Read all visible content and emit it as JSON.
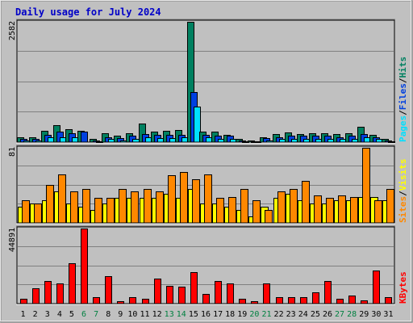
{
  "chart_data": {
    "type": "bar",
    "title": "Daily usage for July 2024",
    "days": [
      "1",
      "2",
      "3",
      "4",
      "5",
      "6",
      "7",
      "8",
      "9",
      "10",
      "11",
      "12",
      "13",
      "14",
      "15",
      "16",
      "17",
      "18",
      "19",
      "20",
      "21",
      "22",
      "23",
      "24",
      "25",
      "26",
      "27",
      "28",
      "29",
      "30",
      "31"
    ],
    "weekend_days": [
      "6",
      "7",
      "13",
      "14",
      "20",
      "21",
      "27",
      "28"
    ],
    "colors": {
      "hits": "#008060",
      "files": "#0040e0",
      "pages": "#00e0ff",
      "visits": "#ffff00",
      "sites": "#ff8800",
      "kbytes": "#ff0000",
      "weekday": "#000000",
      "weekend": "#008040",
      "title": "#0000c8",
      "grid": "#808080",
      "background": "#c0c0c0"
    },
    "panels": [
      {
        "id": "hits-panel",
        "ymax": 2582,
        "ymax_label": "2582",
        "legend": [
          {
            "label": "Pages",
            "color": "#00e0ff"
          },
          {
            "label": "Files",
            "color": "#0040e0"
          },
          {
            "label": "Hits",
            "color": "#008060"
          }
        ],
        "separator": "/",
        "series": [
          {
            "name": "Hits",
            "color": "#008060",
            "values": [
              108,
              108,
              238,
              367,
              270,
              238,
              65,
              194,
              130,
              194,
              399,
              226,
              238,
              258,
              2582,
              226,
              226,
              160,
              65,
              32,
              108,
              174,
              207,
              174,
              194,
              194,
              174,
              194,
              323,
              160,
              65
            ]
          },
          {
            "name": "Files",
            "color": "#0040e0",
            "values": [
              75,
              75,
              160,
              226,
              194,
              226,
              43,
              108,
              86,
              130,
              174,
              160,
              160,
              160,
              1070,
              160,
              140,
              130,
              43,
              20,
              86,
              108,
              140,
              140,
              140,
              130,
              108,
              140,
              174,
              108,
              43
            ]
          },
          {
            "name": "Pages",
            "color": "#00e0ff",
            "values": [
              43,
              43,
              108,
              108,
              97,
              0,
              20,
              65,
              43,
              65,
              97,
              86,
              86,
              97,
              762,
              97,
              75,
              75,
              20,
              10,
              43,
              65,
              75,
              65,
              65,
              65,
              65,
              65,
              108,
              65,
              20
            ]
          }
        ]
      },
      {
        "id": "visits-panel",
        "ymax": 81,
        "ymax_label": "81",
        "legend": [
          {
            "label": "Sites",
            "color": "#ff8800"
          },
          {
            "label": "Visits",
            "color": "#ffff00"
          }
        ],
        "separator": "/",
        "series": [
          {
            "name": "Visits",
            "color": "#ffff00",
            "values": [
              17,
              21,
              24,
              34,
              21,
              17,
              14,
              21,
              27,
              27,
              27,
              27,
              31,
              27,
              37,
              21,
              21,
              17,
              14,
              7,
              17,
              27,
              31,
              24,
              21,
              21,
              24,
              24,
              28,
              28,
              24
            ]
          },
          {
            "name": "Sites",
            "color": "#ff8800",
            "values": [
              24,
              21,
              41,
              52,
              34,
              37,
              27,
              27,
              37,
              34,
              37,
              34,
              51,
              55,
              47,
              52,
              27,
              28,
              37,
              24,
              14,
              34,
              37,
              45,
              30,
              27,
              30,
              28,
              81,
              24,
              37
            ]
          }
        ]
      },
      {
        "id": "kbytes-panel",
        "ymax": 44891,
        "ymax_label": "44891",
        "legend": [
          {
            "label": "KBytes",
            "color": "#ff0000"
          }
        ],
        "separator": "",
        "series": [
          {
            "name": "KBytes",
            "color": "#ff0000",
            "values": [
              2700,
              9000,
              13300,
              12000,
              24000,
              44891,
              4000,
              16500,
              1300,
              4000,
              2700,
              15000,
              10600,
              10000,
              18600,
              6000,
              13300,
              12000,
              3000,
              1300,
              12000,
              4000,
              4000,
              4000,
              6600,
              13300,
              3000,
              4700,
              2000,
              20000,
              4000
            ]
          }
        ]
      }
    ]
  }
}
